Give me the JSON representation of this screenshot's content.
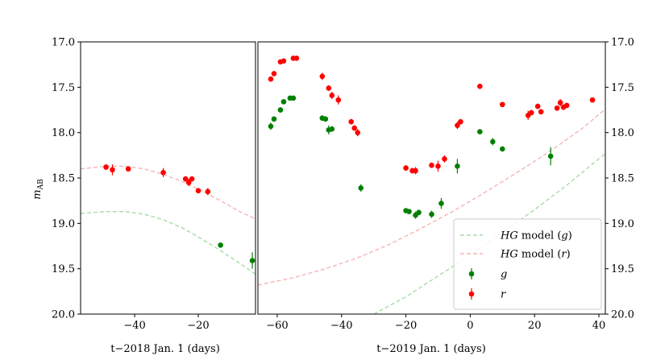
{
  "chart_data": [
    {
      "type": "scatter",
      "panel": "left",
      "xlabel": "t−2018 Jan. 1 (days)",
      "ylabel": "m",
      "ylabel_sub": "AB",
      "xlim": [
        -57,
        -2
      ],
      "ylim": [
        20.0,
        17.0
      ],
      "xticks": [
        -40,
        -20
      ],
      "xtick_labels": [
        "−40",
        "−20"
      ],
      "yticks": [
        17.0,
        17.5,
        18.0,
        18.5,
        19.0,
        19.5,
        20.0
      ],
      "ytick_labels": [
        "17.0",
        "17.5",
        "18.0",
        "18.5",
        "19.0",
        "19.5",
        "20.0"
      ],
      "series": [
        {
          "name": "g",
          "color": "#008000",
          "points": [
            [
              -13,
              19.24,
              0.02
            ],
            [
              -3,
              19.41,
              0.09
            ]
          ]
        },
        {
          "name": "r",
          "color": "#ff0000",
          "points": [
            [
              -49,
              18.38,
              0.03
            ],
            [
              -47,
              18.41,
              0.06
            ],
            [
              -42,
              18.4,
              0.02
            ],
            [
              -31,
              18.44,
              0.05
            ],
            [
              -24,
              18.51,
              0.03
            ],
            [
              -23,
              18.55,
              0.04
            ],
            [
              -22,
              18.51,
              0.03
            ],
            [
              -20,
              18.64,
              0.03
            ],
            [
              -17,
              18.65,
              0.04
            ]
          ]
        }
      ],
      "models": [
        {
          "name": "HG model (g)",
          "color": "#a8dca8",
          "x": [
            -57,
            -49,
            -43,
            -37,
            -31,
            -25,
            -19,
            -13,
            -7,
            -2
          ],
          "y": [
            18.89,
            18.87,
            18.87,
            18.9,
            18.96,
            19.05,
            19.17,
            19.3,
            19.44,
            19.56
          ]
        },
        {
          "name": "HG model (r)",
          "color": "#f5b5b5",
          "x": [
            -57,
            -49,
            -43,
            -37,
            -31,
            -25,
            -19,
            -13,
            -7,
            -2
          ],
          "y": [
            18.4,
            18.37,
            18.37,
            18.4,
            18.46,
            18.54,
            18.64,
            18.75,
            18.87,
            18.95
          ]
        }
      ]
    },
    {
      "type": "scatter",
      "panel": "right",
      "xlabel": "t−2019 Jan. 1 (days)",
      "xlim": [
        -66,
        42
      ],
      "ylim": [
        20.0,
        17.0
      ],
      "xticks": [
        -60,
        -40,
        -20,
        0,
        20,
        40
      ],
      "xtick_labels": [
        "−60",
        "−40",
        "−20",
        "0",
        "20",
        "40"
      ],
      "yticks": [
        17.0,
        17.5,
        18.0,
        18.5,
        19.0,
        19.5,
        20.0
      ],
      "ytick_labels": [
        "17.0",
        "17.5",
        "18.0",
        "18.5",
        "19.0",
        "19.5",
        "20.0"
      ],
      "series": [
        {
          "name": "g",
          "color": "#008000",
          "points": [
            [
              -62,
              17.93,
              0.04
            ],
            [
              -61,
              17.85,
              0.03
            ],
            [
              -59,
              17.75,
              0.03
            ],
            [
              -58,
              17.66,
              0.02
            ],
            [
              -56,
              17.62,
              0.02
            ],
            [
              -55,
              17.62,
              0.02
            ],
            [
              -46,
              17.84,
              0.03
            ],
            [
              -45,
              17.85,
              0.03
            ],
            [
              -44,
              17.97,
              0.05
            ],
            [
              -43,
              17.96,
              0.03
            ],
            [
              -34,
              18.61,
              0.04
            ],
            [
              -20,
              18.86,
              0.02
            ],
            [
              -19,
              18.87,
              0.02
            ],
            [
              -17,
              18.91,
              0.04
            ],
            [
              -16,
              18.88,
              0.03
            ],
            [
              -12,
              18.9,
              0.04
            ],
            [
              -9,
              18.78,
              0.06
            ],
            [
              -4,
              18.37,
              0.08
            ],
            [
              3,
              17.99,
              0.02
            ],
            [
              7,
              18.1,
              0.04
            ],
            [
              10,
              18.18,
              0.02
            ],
            [
              25,
              18.26,
              0.1
            ]
          ]
        },
        {
          "name": "r",
          "color": "#ff0000",
          "points": [
            [
              -62,
              17.41,
              0.02
            ],
            [
              -61,
              17.35,
              0.02
            ],
            [
              -59,
              17.22,
              0.02
            ],
            [
              -58,
              17.21,
              0.02
            ],
            [
              -55,
              17.18,
              0.02
            ],
            [
              -54,
              17.18,
              0.02
            ],
            [
              -46,
              17.38,
              0.04
            ],
            [
              -44,
              17.51,
              0.03
            ],
            [
              -43,
              17.59,
              0.04
            ],
            [
              -41,
              17.64,
              0.05
            ],
            [
              -37,
              17.88,
              0.03
            ],
            [
              -36,
              17.95,
              0.03
            ],
            [
              -35,
              18.0,
              0.04
            ],
            [
              -20,
              18.39,
              0.03
            ],
            [
              -18,
              18.42,
              0.03
            ],
            [
              -17,
              18.42,
              0.04
            ],
            [
              -12,
              18.36,
              0.03
            ],
            [
              -10,
              18.37,
              0.06
            ],
            [
              -8,
              18.29,
              0.04
            ],
            [
              -4,
              17.92,
              0.04
            ],
            [
              -3,
              17.88,
              0.03
            ],
            [
              3,
              17.49,
              0.02
            ],
            [
              10,
              17.69,
              0.02
            ],
            [
              18,
              17.81,
              0.05
            ],
            [
              19,
              17.78,
              0.03
            ],
            [
              21,
              17.71,
              0.03
            ],
            [
              22,
              17.77,
              0.03
            ],
            [
              27,
              17.73,
              0.03
            ],
            [
              28,
              17.67,
              0.04
            ],
            [
              29,
              17.72,
              0.03
            ],
            [
              30,
              17.7,
              0.03
            ],
            [
              38,
              17.64,
              0.02
            ]
          ]
        }
      ],
      "models": [
        {
          "name": "HG model (g)",
          "color": "#a8dca8",
          "x": [
            -30,
            -20,
            -10,
            0,
            10,
            20,
            30,
            42
          ],
          "y": [
            20.0,
            19.81,
            19.58,
            19.35,
            19.1,
            18.85,
            18.58,
            18.23
          ]
        },
        {
          "name": "HG model (r)",
          "color": "#f5b5b5",
          "x": [
            -66,
            -55,
            -45,
            -35,
            -25,
            -15,
            -5,
            5,
            15,
            25,
            35,
            42
          ],
          "y": [
            19.68,
            19.6,
            19.5,
            19.38,
            19.23,
            19.05,
            18.86,
            18.65,
            18.43,
            18.2,
            17.95,
            17.74
          ]
        }
      ]
    }
  ],
  "legend": {
    "placement": "lower-right",
    "entries": [
      {
        "label_italic": "HG",
        "label_rest": " model (",
        "label_var": "g",
        "label_close": ")",
        "kind": "line",
        "color": "#a8dca8"
      },
      {
        "label_italic": "HG",
        "label_rest": " model (",
        "label_var": "r",
        "label_close": ")",
        "kind": "line",
        "color": "#f5b5b5"
      },
      {
        "label_var": "g",
        "kind": "marker",
        "color": "#008000"
      },
      {
        "label_var": "r",
        "kind": "marker",
        "color": "#ff0000"
      }
    ]
  }
}
